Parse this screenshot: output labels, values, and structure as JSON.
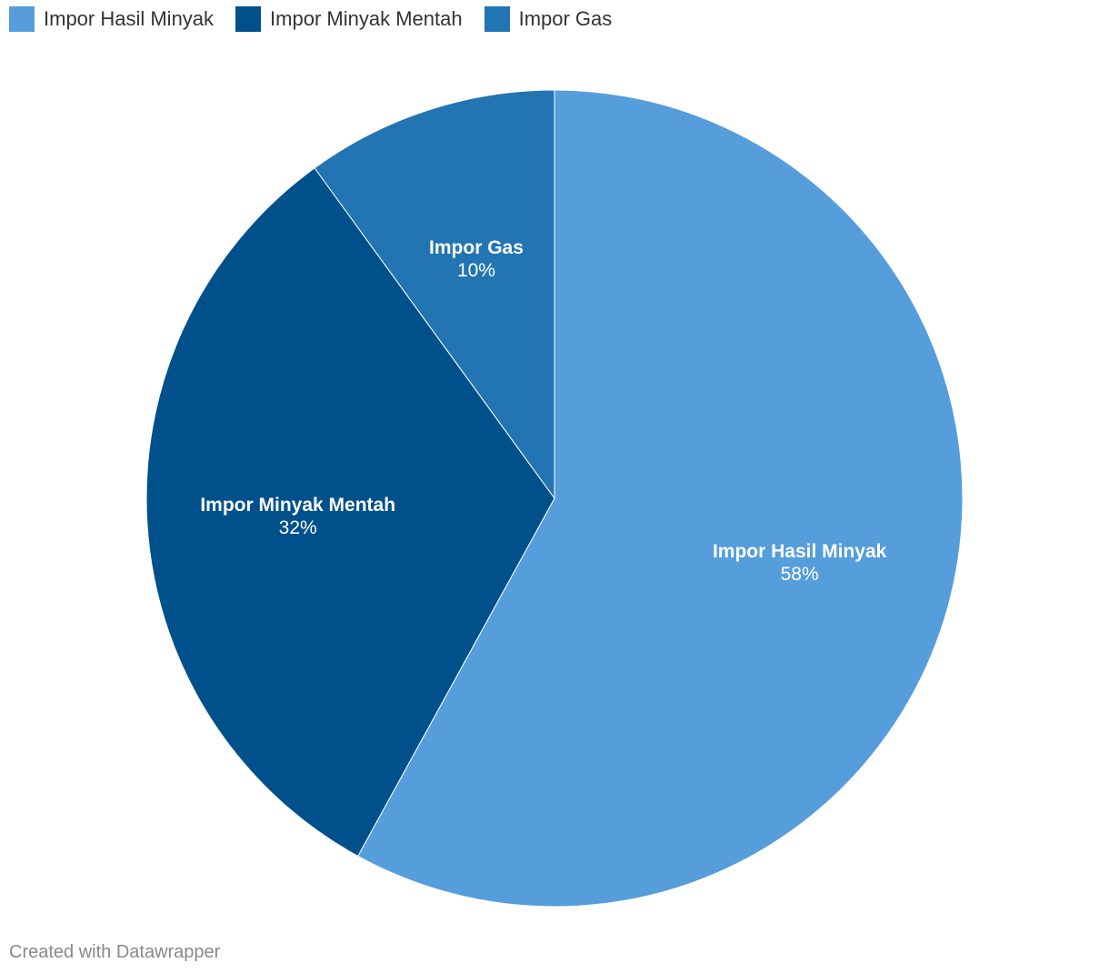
{
  "chart_data": {
    "type": "pie",
    "categories": [
      "Impor Hasil Minyak",
      "Impor Minyak Mentah",
      "Impor Gas"
    ],
    "values": [
      58,
      32,
      10
    ],
    "value_labels": [
      "58%",
      "32%",
      "10%"
    ],
    "colors": [
      "#559ddb",
      "#00508b",
      "#2275b2"
    ],
    "legend_position": "top-left",
    "start": "12 o'clock, clockwise"
  },
  "legend": [
    {
      "label": "Impor Hasil Minyak",
      "color": "#559ddb"
    },
    {
      "label": "Impor Minyak Mentah",
      "color": "#00508b"
    },
    {
      "label": "Impor Gas",
      "color": "#2275b2"
    }
  ],
  "footer": {
    "credit": "Created with Datawrapper"
  }
}
